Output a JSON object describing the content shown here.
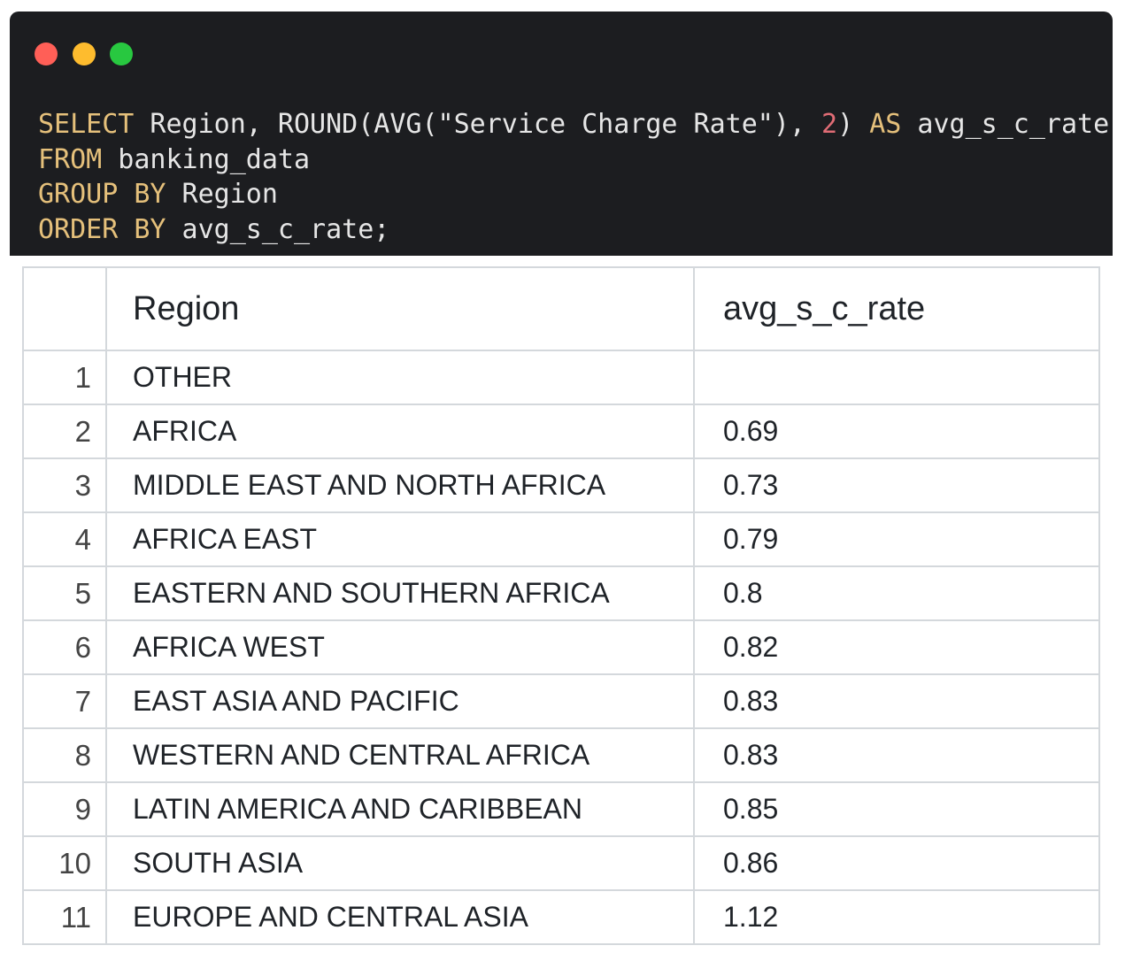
{
  "code": {
    "lines": [
      [
        {
          "text": "SELECT",
          "style": "keyword"
        },
        {
          "text": " Region, ROUND(AVG(\"Service Charge Rate\"), ",
          "style": "plain"
        },
        {
          "text": "2",
          "style": "number"
        },
        {
          "text": ") ",
          "style": "plain"
        },
        {
          "text": "AS",
          "style": "keyword"
        },
        {
          "text": " avg_s_c_rate",
          "style": "plain"
        }
      ],
      [
        {
          "text": "FROM",
          "style": "keyword"
        },
        {
          "text": " banking_data",
          "style": "plain"
        }
      ],
      [
        {
          "text": "GROUP BY",
          "style": "keyword"
        },
        {
          "text": " Region",
          "style": "plain"
        }
      ],
      [
        {
          "text": "ORDER BY",
          "style": "keyword"
        },
        {
          "text": " avg_s_c_rate;",
          "style": "plain"
        }
      ]
    ],
    "colors": {
      "keyword": "#e5c07b",
      "number": "#e06c75",
      "plain": "#e6e6e6"
    }
  },
  "table": {
    "columns": [
      "Region",
      "avg_s_c_rate"
    ],
    "rows": [
      [
        1,
        "OTHER",
        null
      ],
      [
        2,
        "AFRICA",
        0.69
      ],
      [
        3,
        "MIDDLE EAST AND NORTH AFRICA",
        0.73
      ],
      [
        4,
        "AFRICA EAST",
        0.79
      ],
      [
        5,
        "EASTERN AND SOUTHERN AFRICA",
        0.8
      ],
      [
        6,
        "AFRICA WEST",
        0.82
      ],
      [
        7,
        "EAST ASIA AND PACIFIC",
        0.83
      ],
      [
        8,
        "WESTERN AND CENTRAL AFRICA",
        0.83
      ],
      [
        9,
        "LATIN AMERICA AND CARIBBEAN",
        0.85
      ],
      [
        10,
        "SOUTH ASIA",
        0.86
      ],
      [
        11,
        "EUROPE AND CENTRAL ASIA",
        1.12
      ]
    ]
  }
}
